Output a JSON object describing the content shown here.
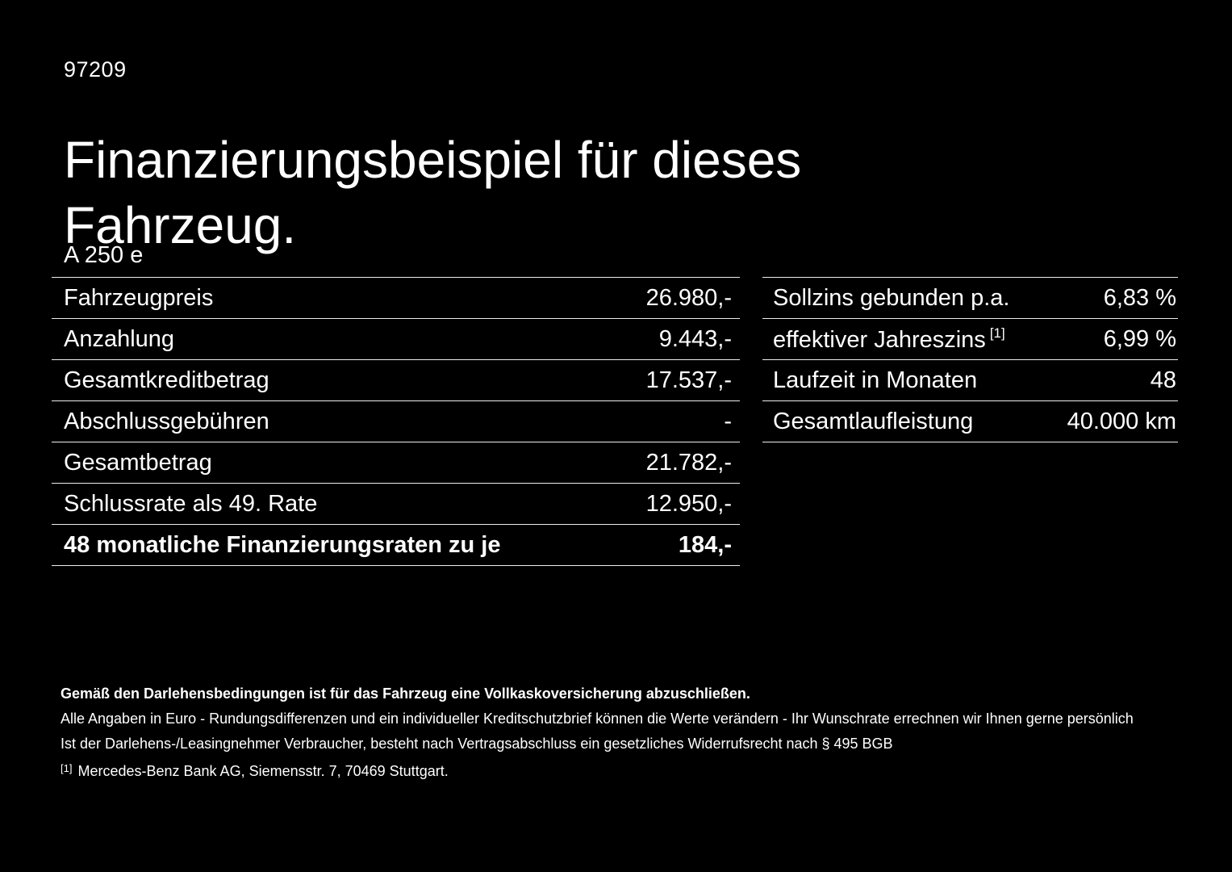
{
  "page": {
    "id_number": "97209",
    "title": "Finanzierungsbeispiel für dieses Fahrzeug.",
    "model": "A 250 e"
  },
  "left_table": {
    "rows": [
      {
        "label": "Fahrzeugpreis",
        "value": "26.980,-"
      },
      {
        "label": "Anzahlung",
        "value": "9.443,-"
      },
      {
        "label": "Gesamtkreditbetrag",
        "value": "17.537,-"
      },
      {
        "label": "Abschlussgebühren",
        "value": "-"
      },
      {
        "label": "Gesamtbetrag",
        "value": "21.782,-"
      },
      {
        "label": "Schlussrate als 49. Rate",
        "value": "12.950,-"
      },
      {
        "label": "48 monatliche Finanzierungsraten zu je",
        "value": "184,-"
      }
    ]
  },
  "right_table": {
    "rows": [
      {
        "label": "Sollzins gebunden p.a.",
        "value": "6,83 %"
      },
      {
        "label": "effektiver Jahreszins",
        "sup": "[1]",
        "value": "6,99 %"
      },
      {
        "label": "Laufzeit in Monaten",
        "value": "48"
      },
      {
        "label": "Gesamtlaufleistung",
        "value": "40.000 km"
      }
    ]
  },
  "footnotes": {
    "insurance_note": "Gemäß den Darlehensbedingungen ist für das Fahrzeug eine Vollkaskoversicherung abzuschließen.",
    "euro_note": "Alle Angaben in Euro - Rundungsdifferenzen und ein individueller Kreditschutzbrief können die Werte verändern - Ihr Wunschrate errechnen wir Ihnen gerne persönlich",
    "withdrawal_note": "Ist der Darlehens-/Leasingnehmer Verbraucher, besteht nach Vertragsabschluss ein gesetzliches Widerrufsrecht nach § 495 BGB",
    "reference_marker": "[1]",
    "reference_text": "Mercedes-Benz Bank AG, Siemensstr. 7, 70469 Stuttgart."
  },
  "colors": {
    "background": "#000000",
    "text": "#ffffff",
    "divider": "#ededed"
  }
}
